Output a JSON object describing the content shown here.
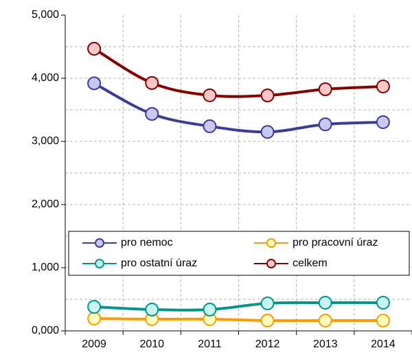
{
  "chart_data": {
    "type": "line",
    "categories": [
      "2009",
      "2010",
      "2011",
      "2012",
      "2013",
      "2014"
    ],
    "series": [
      {
        "name": "pro nemoc",
        "color": "#3c3c96",
        "marker_color": "#c8c8f0",
        "values": [
          3920,
          3435,
          3240,
          3150,
          3270,
          3305
        ]
      },
      {
        "name": "pro pracovní úraz",
        "color": "#ff9900",
        "marker_color": "#ffffc0",
        "values": [
          195,
          185,
          185,
          163,
          163,
          163
        ]
      },
      {
        "name": "pro ostatní úraz",
        "color": "#00968c",
        "marker_color": "#c8f5f0",
        "values": [
          380,
          337,
          337,
          435,
          446,
          446
        ]
      },
      {
        "name": "celkem",
        "color": "#820000",
        "marker_color": "#ffc8c8",
        "values": [
          4467,
          3925,
          3730,
          3728,
          3826,
          3870
        ]
      }
    ],
    "ylim": [
      0,
      5000
    ],
    "yticks": [
      {
        "value": 0,
        "label": "0,000"
      },
      {
        "value": 1000,
        "label": "1,000"
      },
      {
        "value": 2000,
        "label": "2,000"
      },
      {
        "value": 3000,
        "label": "3,000"
      },
      {
        "value": 4000,
        "label": "4,000"
      },
      {
        "value": 5000,
        "label": "5,000"
      }
    ],
    "minor_yticks": [
      500,
      1500,
      2500,
      3500,
      4500
    ],
    "grid": true
  }
}
